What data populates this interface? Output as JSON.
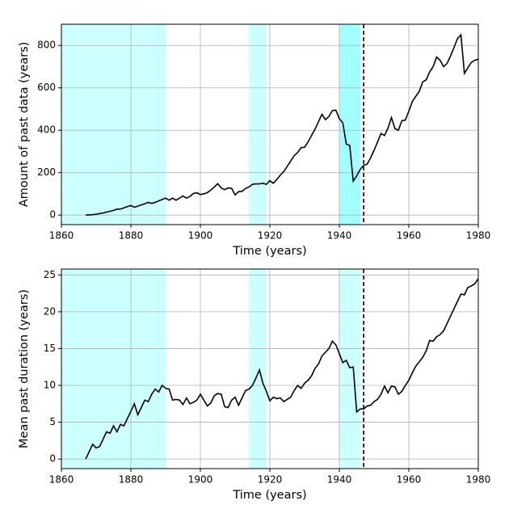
{
  "chart_data": [
    {
      "type": "line",
      "xlabel": "Time (years)",
      "ylabel": "Amount of past data (years)",
      "xlim": [
        1860,
        1980
      ],
      "xticks": [
        1860,
        1880,
        1900,
        1920,
        1940,
        1960,
        1980
      ],
      "ylim": [
        -45,
        900
      ],
      "yticks": [
        0,
        200,
        400,
        600,
        800
      ],
      "grid": true,
      "spans": [
        {
          "start": 1860,
          "end": 1890,
          "color": "#ccffff"
        },
        {
          "start": 1914,
          "end": 1919,
          "color": "#ccffff"
        },
        {
          "start": 1940,
          "end": 1946,
          "color": "#a0ffff"
        }
      ],
      "vline": 1947,
      "x": [
        1867,
        1868,
        1869,
        1870,
        1871,
        1872,
        1873,
        1874,
        1875,
        1876,
        1877,
        1878,
        1879,
        1880,
        1881,
        1882,
        1883,
        1884,
        1885,
        1886,
        1887,
        1888,
        1889,
        1890,
        1891,
        1892,
        1893,
        1894,
        1895,
        1896,
        1897,
        1898,
        1899,
        1900,
        1901,
        1902,
        1903,
        1904,
        1905,
        1906,
        1907,
        1908,
        1909,
        1910,
        1911,
        1912,
        1913,
        1914,
        1915,
        1916,
        1917,
        1918,
        1919,
        1920,
        1921,
        1922,
        1923,
        1924,
        1925,
        1926,
        1927,
        1928,
        1929,
        1930,
        1931,
        1932,
        1933,
        1934,
        1935,
        1936,
        1937,
        1938,
        1939,
        1940,
        1941,
        1942,
        1943,
        1944,
        1945,
        1946,
        1947,
        1948,
        1949,
        1950,
        1951,
        1952,
        1953,
        1954,
        1955,
        1956,
        1957,
        1958,
        1959,
        1960,
        1961,
        1962,
        1963,
        1964,
        1965,
        1966,
        1967,
        1968,
        1969,
        1970,
        1971,
        1972,
        1973,
        1974,
        1975,
        1976,
        1977,
        1978,
        1979,
        1980
      ],
      "series": [
        {
          "color": "#000000",
          "values": [
            0,
            1,
            2,
            4,
            7,
            10,
            14,
            18,
            22,
            28,
            28,
            34,
            40,
            45,
            37,
            42,
            48,
            53,
            60,
            55,
            60,
            67,
            73,
            80,
            70,
            80,
            70,
            80,
            90,
            80,
            88,
            102,
            105,
            97,
            100,
            106,
            118,
            132,
            148,
            128,
            120,
            128,
            126,
            95,
            110,
            112,
            125,
            133,
            145,
            147,
            147,
            150,
            145,
            162,
            150,
            168,
            188,
            205,
            230,
            255,
            280,
            295,
            318,
            320,
            345,
            375,
            405,
            440,
            475,
            450,
            465,
            493,
            495,
            455,
            435,
            335,
            328,
            160,
            185,
            215,
            235,
            240,
            270,
            305,
            345,
            385,
            375,
            410,
            460,
            408,
            400,
            445,
            448,
            490,
            535,
            560,
            583,
            628,
            638,
            675,
            700,
            745,
            730,
            700,
            715,
            750,
            790,
            832,
            850,
            668,
            695,
            720,
            730,
            735
          ]
        }
      ]
    },
    {
      "type": "line",
      "xlabel": "Time (years)",
      "ylabel": "Mean past duration (years)",
      "xlim": [
        1860,
        1980
      ],
      "xticks": [
        1860,
        1880,
        1900,
        1920,
        1940,
        1960,
        1980
      ],
      "ylim": [
        -1.3,
        25.8
      ],
      "yticks": [
        0,
        5,
        10,
        15,
        20,
        25
      ],
      "grid": true,
      "spans": [
        {
          "start": 1860,
          "end": 1890,
          "color": "#ccffff"
        },
        {
          "start": 1914,
          "end": 1919,
          "color": "#ccffff"
        },
        {
          "start": 1940,
          "end": 1946,
          "color": "#ccffff"
        }
      ],
      "vline": 1947,
      "x": [
        1867,
        1868,
        1869,
        1870,
        1871,
        1872,
        1873,
        1874,
        1875,
        1876,
        1877,
        1878,
        1879,
        1880,
        1881,
        1882,
        1883,
        1884,
        1885,
        1886,
        1887,
        1888,
        1889,
        1890,
        1891,
        1892,
        1893,
        1894,
        1895,
        1896,
        1897,
        1898,
        1899,
        1900,
        1901,
        1902,
        1903,
        1904,
        1905,
        1906,
        1907,
        1908,
        1909,
        1910,
        1911,
        1912,
        1913,
        1914,
        1915,
        1916,
        1917,
        1918,
        1919,
        1920,
        1921,
        1922,
        1923,
        1924,
        1925,
        1926,
        1927,
        1928,
        1929,
        1930,
        1931,
        1932,
        1933,
        1934,
        1935,
        1936,
        1937,
        1938,
        1939,
        1940,
        1941,
        1942,
        1943,
        1944,
        1945,
        1946,
        1947,
        1948,
        1949,
        1950,
        1951,
        1952,
        1953,
        1954,
        1955,
        1956,
        1957,
        1958,
        1959,
        1960,
        1961,
        1962,
        1963,
        1964,
        1965,
        1966,
        1967,
        1968,
        1969,
        1970,
        1971,
        1972,
        1973,
        1974,
        1975,
        1976,
        1977,
        1978,
        1979,
        1980
      ],
      "series": [
        {
          "color": "#000000",
          "values": [
            0,
            1,
            2,
            1.5,
            1.7,
            2.7,
            3.7,
            3.5,
            4.5,
            3.7,
            4.7,
            4.5,
            5.5,
            6.5,
            7.5,
            6,
            7,
            8,
            7.8,
            8.8,
            9.5,
            9.1,
            10,
            9.6,
            9.5,
            8,
            8.1,
            8,
            7.4,
            8.3,
            7.5,
            7.7,
            8,
            8.8,
            8,
            7.2,
            7.6,
            8.6,
            8.9,
            8.8,
            7.1,
            7,
            8,
            8.4,
            7.3,
            8.3,
            9.3,
            9.5,
            10,
            11,
            12.1,
            10.3,
            9.2,
            7.9,
            8.4,
            8.2,
            8.3,
            7.8,
            8.1,
            8.4,
            9.3,
            10,
            9.6,
            10.3,
            10.7,
            11.3,
            12.3,
            12.9,
            14,
            14.5,
            15,
            16,
            15.5,
            14.3,
            13.1,
            13.4,
            12.4,
            12.5,
            6.4,
            6.8,
            6.8,
            7.2,
            7.3,
            7.8,
            8.1,
            8.8,
            9.9,
            9,
            9.9,
            9.8,
            8.8,
            9.2,
            10,
            10.7,
            11.7,
            12.6,
            13.2,
            13.8,
            14.7,
            16.1,
            16,
            16.6,
            16.9,
            17.4,
            18.4,
            19.4,
            20.4,
            21.4,
            22.4,
            22.3,
            23.3,
            23.5,
            23.8,
            24.5
          ]
        }
      ]
    }
  ]
}
